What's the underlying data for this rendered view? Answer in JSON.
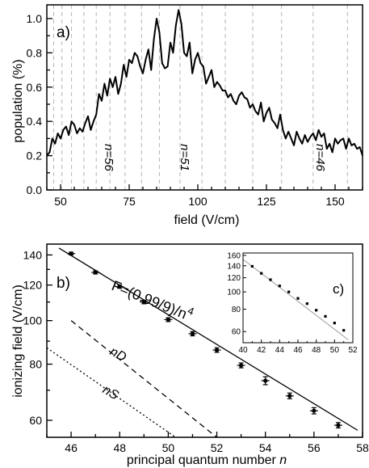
{
  "chart_data": [
    {
      "panel_label": "a)",
      "type": "line",
      "xlabel": "field (V/cm)",
      "ylabel": "population (%)",
      "xlim": [
        45,
        160
      ],
      "ylim": [
        0.0,
        1.08
      ],
      "xticks": [
        50,
        75,
        100,
        125,
        150
      ],
      "yticks": [
        0.0,
        0.2,
        0.4,
        0.6,
        0.8,
        1.0
      ],
      "ytick_labels": [
        "0.0",
        "0.2",
        "0.4",
        "0.6",
        "0.8",
        "1.0"
      ],
      "grid": "vertical dashed lines at resonance fields",
      "resonance_fields": [
        47.5,
        50.5,
        54,
        58.5,
        63,
        68,
        73.5,
        79.5,
        86,
        93.5,
        101.5,
        110,
        120,
        130.5,
        142,
        154.5
      ],
      "annotations": [
        {
          "text": "n=56",
          "x": 63,
          "y": 0.22
        },
        {
          "text": "n=51",
          "x": 93.5,
          "y": 0.22
        },
        {
          "text": "n=46",
          "x": 142,
          "y": 0.22
        }
      ],
      "series": [
        {
          "x": [
            45,
            46,
            47,
            48,
            49,
            50,
            51,
            52,
            53,
            54,
            55,
            56,
            57,
            58,
            59,
            60,
            61,
            62,
            63,
            64,
            65,
            66,
            67,
            68,
            69,
            70,
            71,
            72,
            73,
            74,
            75,
            76,
            77,
            78,
            79,
            80,
            81,
            82,
            83,
            84,
            85,
            86,
            87,
            88,
            89,
            90,
            91,
            92,
            93,
            94,
            95,
            96,
            97,
            98,
            99,
            100,
            101,
            102,
            103,
            104,
            105,
            106,
            107,
            108,
            109,
            110,
            111,
            112,
            113,
            114,
            115,
            116,
            117,
            118,
            119,
            120,
            121,
            122,
            123,
            124,
            125,
            126,
            127,
            128,
            129,
            130,
            131,
            132,
            133,
            134,
            135,
            136,
            137,
            138,
            139,
            140,
            141,
            142,
            143,
            144,
            145,
            146,
            147,
            148,
            149,
            150,
            151,
            152,
            153,
            154,
            155,
            156,
            157,
            158,
            159,
            160
          ],
          "y": [
            0.2,
            0.22,
            0.3,
            0.27,
            0.33,
            0.3,
            0.35,
            0.37,
            0.32,
            0.4,
            0.38,
            0.33,
            0.36,
            0.34,
            0.39,
            0.43,
            0.35,
            0.4,
            0.44,
            0.56,
            0.52,
            0.62,
            0.55,
            0.65,
            0.6,
            0.66,
            0.56,
            0.62,
            0.73,
            0.66,
            0.76,
            0.74,
            0.8,
            0.78,
            0.72,
            0.68,
            0.76,
            0.82,
            0.7,
            0.88,
            1.0,
            0.92,
            0.74,
            0.71,
            0.72,
            0.86,
            0.8,
            0.96,
            1.05,
            0.97,
            0.8,
            0.78,
            0.86,
            0.68,
            0.76,
            0.8,
            0.74,
            0.72,
            0.62,
            0.66,
            0.7,
            0.6,
            0.63,
            0.61,
            0.58,
            0.58,
            0.54,
            0.56,
            0.52,
            0.5,
            0.55,
            0.57,
            0.54,
            0.53,
            0.48,
            0.5,
            0.46,
            0.44,
            0.51,
            0.4,
            0.45,
            0.48,
            0.41,
            0.39,
            0.36,
            0.44,
            0.35,
            0.3,
            0.34,
            0.3,
            0.26,
            0.34,
            0.3,
            0.27,
            0.32,
            0.28,
            0.31,
            0.33,
            0.29,
            0.35,
            0.31,
            0.33,
            0.24,
            0.27,
            0.22,
            0.3,
            0.27,
            0.29,
            0.3,
            0.24,
            0.3,
            0.26,
            0.27,
            0.24,
            0.25,
            0.2
          ]
        }
      ]
    },
    {
      "panel_label": "b)",
      "type": "scatter",
      "xlabel": "principal quantum number n",
      "ylabel": "ionizing field (V/cm)",
      "xlim": [
        45,
        58
      ],
      "ylim": [
        55,
        148
      ],
      "yscale": "log",
      "xticks": [
        46,
        48,
        50,
        52,
        54,
        56,
        58
      ],
      "yticks": [
        60,
        80,
        100,
        120,
        140
      ],
      "annotations": [
        {
          "text": "F=(0.99/9)/n",
          "superscript": "4"
        },
        {
          "text": "nD"
        },
        {
          "text": "nS"
        }
      ],
      "series": [
        {
          "x": [
            46,
            47,
            48,
            49,
            50,
            51,
            52,
            53,
            54,
            55,
            56,
            57
          ],
          "y": [
            141,
            128,
            119,
            110,
            100.5,
            93.5,
            86,
            79.5,
            73.5,
            68,
            63,
            58.5
          ],
          "error": [
            1,
            1,
            1,
            1,
            1,
            1,
            1,
            1,
            1.5,
            1,
            1,
            0.8
          ]
        },
        {
          "x": [
            45.5,
            57.8
          ],
          "y": [
            145,
            57
          ]
        },
        {
          "x": [
            46,
            52
          ],
          "y": [
            100,
            55
          ]
        },
        {
          "x": [
            45,
            50.3
          ],
          "y": [
            87,
            55
          ]
        }
      ]
    },
    {
      "panel_label": "c)",
      "type": "scatter",
      "xlim": [
        40,
        52
      ],
      "ylim": [
        52,
        165
      ],
      "yscale": "log",
      "xticks": [
        40,
        42,
        44,
        46,
        48,
        50,
        52
      ],
      "yticks": [
        60,
        80,
        100,
        120,
        140,
        160
      ],
      "series": [
        {
          "x": [
            41,
            42,
            43,
            44,
            45,
            46,
            47,
            48,
            49,
            50,
            51
          ],
          "y": [
            139,
            127,
            117,
            108,
            100,
            92,
            86,
            79,
            73,
            67,
            61
          ]
        },
        {
          "x": [
            40,
            51.5
          ],
          "y": [
            152,
            54
          ]
        }
      ]
    }
  ]
}
